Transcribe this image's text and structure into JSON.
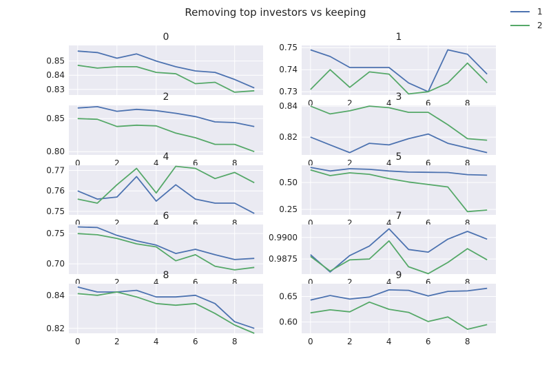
{
  "chart_data": {
    "type": "line",
    "title": "Removing top investors vs keeping",
    "series_names": [
      "1",
      "2"
    ],
    "colors": [
      "#4c72b0",
      "#55a868"
    ],
    "legend": "top-right",
    "grid": true,
    "x": [
      0,
      1,
      2,
      3,
      4,
      5,
      6,
      7,
      8,
      9
    ],
    "xticks": [
      0,
      2,
      4,
      6,
      8
    ],
    "subplots": [
      {
        "title": "0",
        "ylim": [
          0.826,
          0.861
        ],
        "yticks": [
          0.83,
          0.84,
          0.85
        ],
        "ytick_labels": [
          "0.83",
          "0.84",
          "0.85"
        ],
        "xtick_labels_visible": false,
        "series": [
          {
            "name": "1",
            "values": [
              0.857,
              0.856,
              0.852,
              0.855,
              0.85,
              0.846,
              0.843,
              0.842,
              0.837,
              0.831
            ]
          },
          {
            "name": "2",
            "values": [
              0.847,
              0.845,
              0.846,
              0.846,
              0.842,
              0.841,
              0.834,
              0.835,
              0.828,
              0.829
            ]
          }
        ]
      },
      {
        "title": "1",
        "ylim": [
          0.7285,
          0.751
        ],
        "yticks": [
          0.73,
          0.74,
          0.75
        ],
        "ytick_labels": [
          "0.73",
          "0.74",
          "0.75"
        ],
        "xtick_labels_visible": true,
        "series": [
          {
            "name": "1",
            "values": [
              0.749,
              0.746,
              0.741,
              0.741,
              0.741,
              0.734,
              0.73,
              0.749,
              0.747,
              0.738
            ]
          },
          {
            "name": "2",
            "values": [
              0.731,
              0.74,
              0.732,
              0.739,
              0.738,
              0.729,
              0.73,
              0.734,
              0.743,
              0.734
            ]
          }
        ]
      },
      {
        "title": "2",
        "ylim": [
          0.795,
          0.87
        ],
        "yticks": [
          0.8,
          0.85
        ],
        "ytick_labels": [
          "0.80",
          "0.85"
        ],
        "xtick_labels_visible": true,
        "series": [
          {
            "name": "1",
            "values": [
              0.866,
              0.868,
              0.861,
              0.864,
              0.862,
              0.858,
              0.853,
              0.845,
              0.844,
              0.838
            ]
          },
          {
            "name": "2",
            "values": [
              0.85,
              0.849,
              0.838,
              0.84,
              0.839,
              0.828,
              0.821,
              0.811,
              0.811,
              0.8
            ]
          }
        ]
      },
      {
        "title": "3",
        "ylim": [
          0.8085,
          0.8405
        ],
        "yticks": [
          0.82,
          0.84
        ],
        "ytick_labels": [
          "0.82",
          "0.84"
        ],
        "xtick_labels_visible": true,
        "series": [
          {
            "name": "1",
            "values": [
              0.82,
              0.815,
              0.81,
              0.816,
              0.815,
              0.819,
              0.822,
              0.816,
              0.813,
              0.81
            ]
          },
          {
            "name": "2",
            "values": [
              0.84,
              0.835,
              0.837,
              0.84,
              0.839,
              0.836,
              0.836,
              0.828,
              0.819,
              0.818
            ]
          }
        ]
      },
      {
        "title": "4",
        "ylim": [
          0.7483,
          0.7725
        ],
        "yticks": [
          0.75,
          0.76,
          0.77
        ],
        "ytick_labels": [
          "0.75",
          "0.76",
          "0.77"
        ],
        "xtick_labels_visible": true,
        "series": [
          {
            "name": "1",
            "values": [
              0.76,
              0.756,
              0.757,
              0.767,
              0.755,
              0.763,
              0.756,
              0.754,
              0.754,
              0.749
            ]
          },
          {
            "name": "2",
            "values": [
              0.756,
              0.754,
              0.763,
              0.771,
              0.759,
              0.772,
              0.771,
              0.766,
              0.769,
              0.764
            ]
          }
        ]
      },
      {
        "title": "5",
        "ylim": [
          0.2,
          0.66
        ],
        "yticks": [
          0.25,
          0.5
        ],
        "ytick_labels": [
          "0.25",
          "0.50"
        ],
        "xtick_labels_visible": true,
        "series": [
          {
            "name": "1",
            "values": [
              0.64,
              0.607,
              0.628,
              0.622,
              0.607,
              0.597,
              0.595,
              0.593,
              0.573,
              0.568
            ]
          },
          {
            "name": "2",
            "values": [
              0.617,
              0.564,
              0.59,
              0.576,
              0.536,
              0.505,
              0.482,
              0.459,
              0.23,
              0.245
            ]
          }
        ]
      },
      {
        "title": "6",
        "ylim": [
          0.683,
          0.765
        ],
        "yticks": [
          0.7,
          0.75
        ],
        "ytick_labels": [
          "0.70",
          "0.75"
        ],
        "xtick_labels_visible": true,
        "series": [
          {
            "name": "1",
            "values": [
              0.761,
              0.76,
              0.747,
              0.738,
              0.731,
              0.717,
              0.724,
              0.715,
              0.707,
              0.709
            ]
          },
          {
            "name": "2",
            "values": [
              0.75,
              0.748,
              0.742,
              0.733,
              0.728,
              0.705,
              0.715,
              0.696,
              0.69,
              0.694
            ]
          }
        ]
      },
      {
        "title": "7",
        "ylim": [
          0.98575,
          0.9915
        ],
        "yticks": [
          0.9875,
          0.99
        ],
        "ytick_labels": [
          "0.9875",
          "0.9900"
        ],
        "xtick_labels_visible": true,
        "series": [
          {
            "name": "1",
            "values": [
              0.988,
              0.986,
              0.9879,
              0.989,
              0.991,
              0.9886,
              0.9883,
              0.9898,
              0.9907,
              0.9898
            ]
          },
          {
            "name": "2",
            "values": [
              0.9878,
              0.9861,
              0.9874,
              0.9875,
              0.9896,
              0.9866,
              0.9858,
              0.9871,
              0.9887,
              0.9874
            ]
          }
        ]
      },
      {
        "title": "8",
        "ylim": [
          0.817,
          0.847
        ],
        "yticks": [
          0.82,
          0.84
        ],
        "ytick_labels": [
          "0.82",
          "0.84"
        ],
        "xtick_labels_visible": true,
        "series": [
          {
            "name": "1",
            "values": [
              0.845,
              0.842,
              0.842,
              0.843,
              0.839,
              0.839,
              0.84,
              0.835,
              0.824,
              0.82
            ]
          },
          {
            "name": "2",
            "values": [
              0.841,
              0.84,
              0.842,
              0.839,
              0.835,
              0.834,
              0.835,
              0.829,
              0.822,
              0.817
            ]
          }
        ]
      },
      {
        "title": "9",
        "ylim": [
          0.578,
          0.675
        ],
        "yticks": [
          0.6,
          0.65
        ],
        "ytick_labels": [
          "0.60",
          "0.65"
        ],
        "xtick_labels_visible": true,
        "series": [
          {
            "name": "1",
            "values": [
              0.643,
              0.652,
              0.645,
              0.649,
              0.663,
              0.662,
              0.651,
              0.66,
              0.661,
              0.666
            ]
          },
          {
            "name": "2",
            "values": [
              0.618,
              0.624,
              0.62,
              0.639,
              0.625,
              0.619,
              0.601,
              0.61,
              0.586,
              0.595
            ]
          }
        ]
      }
    ]
  }
}
